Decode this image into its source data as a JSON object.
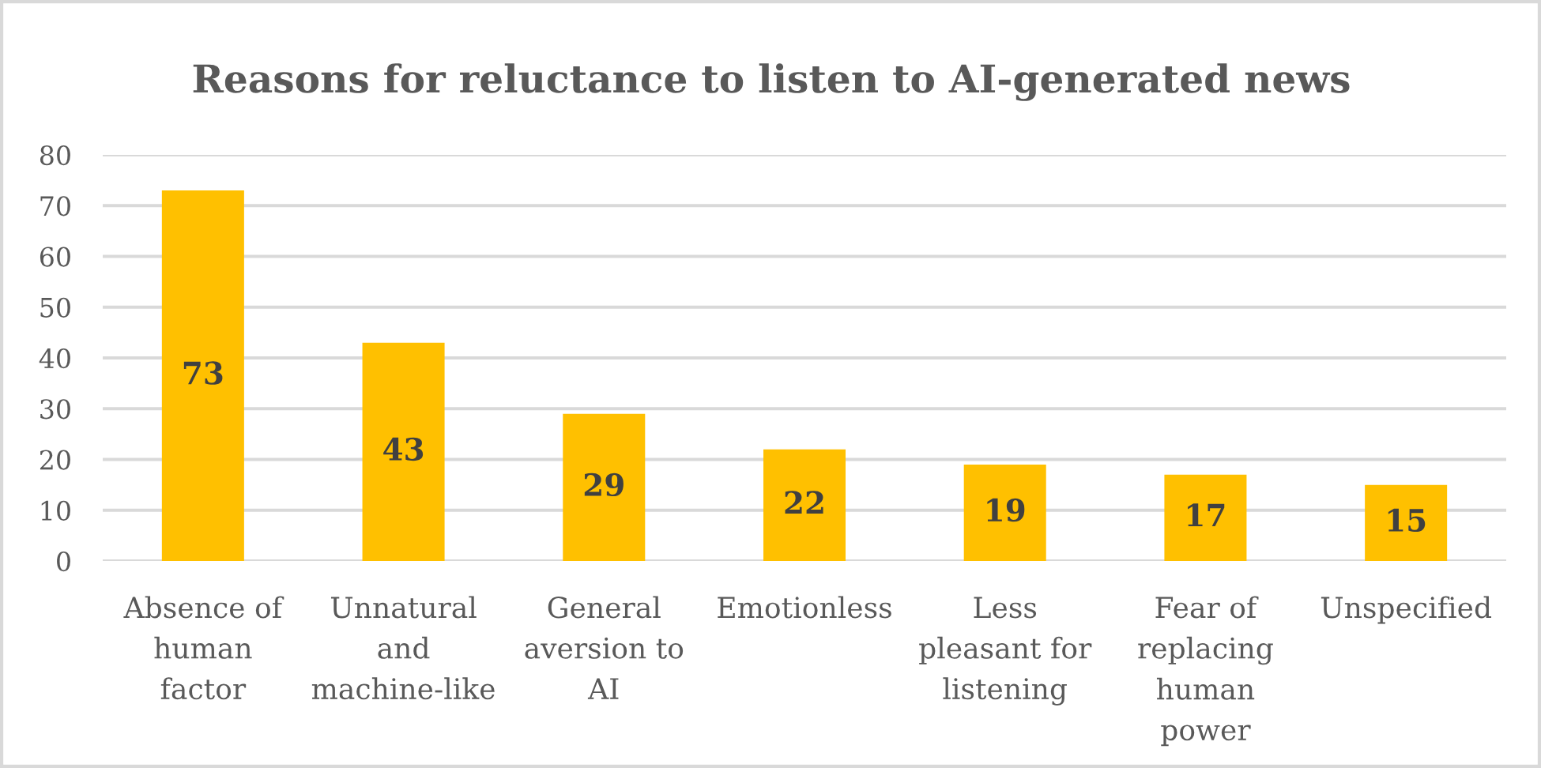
{
  "chart_data": {
    "type": "bar",
    "title": "Reasons for reluctance to listen to AI-generated news",
    "categories": [
      "Absence of\nhuman\nfactor",
      "Unnatural\nand\nmachine-like",
      "General\naversion to\nAI",
      "Emotionless",
      "Less\npleasant for\nlistening",
      "Fear of\nreplacing\nhuman\npower",
      "Unspecified"
    ],
    "values": [
      73,
      43,
      29,
      22,
      19,
      17,
      15
    ],
    "color": "#ffc000",
    "ylim": [
      0,
      80
    ],
    "yticks": [
      0,
      10,
      20,
      30,
      40,
      50,
      60,
      70,
      80
    ],
    "grid": "y",
    "data_labels": true
  }
}
